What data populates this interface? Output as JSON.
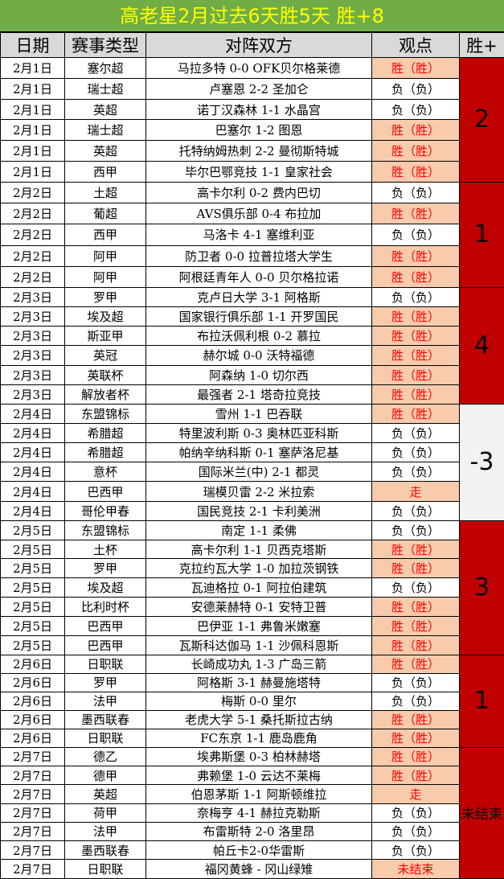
{
  "title": "高老星2月过去6天胜5天  胜+8",
  "headers": [
    "日期",
    "赛事类型",
    "对阵双方",
    "观点",
    "胜+"
  ],
  "colors": {
    "title_bg": "#70ad47",
    "title_text": "#ffff00",
    "header_bg": "#d9d9d9",
    "win_bg": "#f8cbad",
    "win_text": "#ff0000",
    "sum_bg": "#c00000",
    "sum_neg_bg": "#f2f2f2"
  },
  "days": [
    {
      "sum": "2",
      "rows": [
        [
          "2月1日",
          "塞尔超",
          "马拉多特 0-0 OFK贝尔格莱德",
          "胜（胜）"
        ],
        [
          "2月1日",
          "瑞士超",
          "卢塞恩 2-2 圣加仑",
          "负（负）"
        ],
        [
          "2月1日",
          "英超",
          "诺丁汉森林 1-1 水晶宫",
          "负（负）"
        ],
        [
          "2月1日",
          "瑞士超",
          "巴塞尔 1-2 图恩",
          "胜（胜）"
        ],
        [
          "2月1日",
          "英超",
          "托特纳姆热刺 2-2 曼彻斯特城",
          "胜（胜）"
        ],
        [
          "2月1日",
          "西甲",
          "毕尔巴鄂竞技 1-1 皇家社会",
          "胜（胜）"
        ]
      ]
    },
    {
      "sum": "1",
      "rows": [
        [
          "2月2日",
          "土超",
          "高卡尔利 0-2 费内巴切",
          "负（负）"
        ],
        [
          "2月2日",
          "葡超",
          "AVS俱乐部 0-4 布拉加",
          "胜（胜）"
        ],
        [
          "2月2日",
          "西甲",
          "马洛卡 4-1 塞维利亚",
          "负（负）"
        ],
        [
          "2月2日",
          "阿甲",
          "防卫者 0-0 拉普拉塔大学生",
          "胜（胜）"
        ],
        [
          "2月2日",
          "阿甲",
          "阿根廷青年人 0-0 贝尔格拉诺",
          "胜（胜）"
        ]
      ]
    },
    {
      "sum": "4",
      "rows": [
        [
          "2月3日",
          "罗甲",
          "克卢日大学 3-1 阿格斯",
          "负（负）"
        ],
        [
          "2月3日",
          "埃及超",
          "国家银行俱乐部 1-1 开罗国民",
          "胜（胜）"
        ],
        [
          "2月3日",
          "斯亚甲",
          "布拉沃佩利根 0-2 慕拉",
          "胜（胜）"
        ],
        [
          "2月3日",
          "英冠",
          "赫尔城 0-0 沃特福德",
          "胜（胜）"
        ],
        [
          "2月3日",
          "英联杯",
          "阿森纳 1-0 切尔西",
          "胜（胜）"
        ],
        [
          "2月3日",
          "解放者杯",
          "最强者 2-1 塔奇拉竞技",
          "胜（胜）"
        ]
      ]
    },
    {
      "sum": "-3",
      "rows": [
        [
          "2月4日",
          "东盟锦标",
          "雪州 1-1 巴吞联",
          "胜（胜）"
        ],
        [
          "2月4日",
          "希腊超",
          "特里波利斯 0-3 奥林匹亚科斯",
          "负（负）"
        ],
        [
          "2月4日",
          "希腊超",
          "帕纳辛纳科斯 0-1 塞萨洛尼基",
          "负（负）"
        ],
        [
          "2月4日",
          "意杯",
          "国际米兰(中) 2-1 都灵",
          "负（负）"
        ],
        [
          "2月4日",
          "巴西甲",
          "瑞模贝雷 2-2 米拉索",
          "走"
        ],
        [
          "2月4日",
          "哥伦甲春",
          "国民竞技 2-1 卡利美洲",
          "负（负）"
        ]
      ]
    },
    {
      "sum": "3",
      "rows": [
        [
          "2月5日",
          "东盟锦标",
          "南定 1-1 柔佛",
          "负（负）"
        ],
        [
          "2月5日",
          "土杯",
          "高卡尔利 1-1 贝西克塔斯",
          "胜（胜）"
        ],
        [
          "2月5日",
          "罗甲",
          "克拉约瓦大学 1-0 加拉茨钢铁",
          "胜（胜）"
        ],
        [
          "2月5日",
          "埃及超",
          "瓦迪格拉 0-1 阿拉伯建筑",
          "负（负）"
        ],
        [
          "2月5日",
          "比利时杯",
          "安德莱赫特 0-1 安特卫普",
          "胜（胜）"
        ],
        [
          "2月5日",
          "巴西甲",
          "巴伊亚 1-1 弗鲁米嫩塞",
          "胜（胜）"
        ],
        [
          "2月5日",
          "巴西甲",
          "瓦斯科达伽马 1-1 沙佩科恩斯",
          "胜（胜）"
        ]
      ]
    },
    {
      "sum": "1",
      "rows": [
        [
          "2月6日",
          "日职联",
          "长崎成功丸 1-3 广岛三箭",
          "胜（胜）"
        ],
        [
          "2月6日",
          "罗甲",
          "阿格斯 3-1 赫曼施塔特",
          "负（负）"
        ],
        [
          "2月6日",
          "法甲",
          "梅斯 0-0 里尔",
          "负（负）"
        ],
        [
          "2月6日",
          "墨西联春",
          "老虎大学 5-1 桑托斯拉古纳",
          "胜（胜）"
        ],
        [
          "2月6日",
          "日职联",
          "FC东京 1-1 鹿岛鹿角",
          "胜（胜）"
        ]
      ]
    },
    {
      "sum": "未结束",
      "rows": [
        [
          "2月7日",
          "德乙",
          "埃弗斯堡 0-3 柏林赫塔",
          "胜（胜）"
        ],
        [
          "2月7日",
          "德甲",
          "弗赖堡 1-0 云达不莱梅",
          "胜（胜）"
        ],
        [
          "2月7日",
          "英超",
          "伯恩茅斯 1-1 阿斯顿维拉",
          "走"
        ],
        [
          "2月7日",
          "荷甲",
          "奈梅亨 4-1 赫拉克勒斯",
          "负（负）"
        ],
        [
          "2月7日",
          "法甲",
          "布雷斯特 2-0 洛里昂",
          "负（负）"
        ],
        [
          "2月7日",
          "墨西联春",
          "帕丘卡2-0华雷斯",
          "负（负）"
        ],
        [
          "2月7日",
          "日职联",
          "福冈黄蜂 - 冈山绿雉",
          "未结束"
        ]
      ]
    }
  ]
}
